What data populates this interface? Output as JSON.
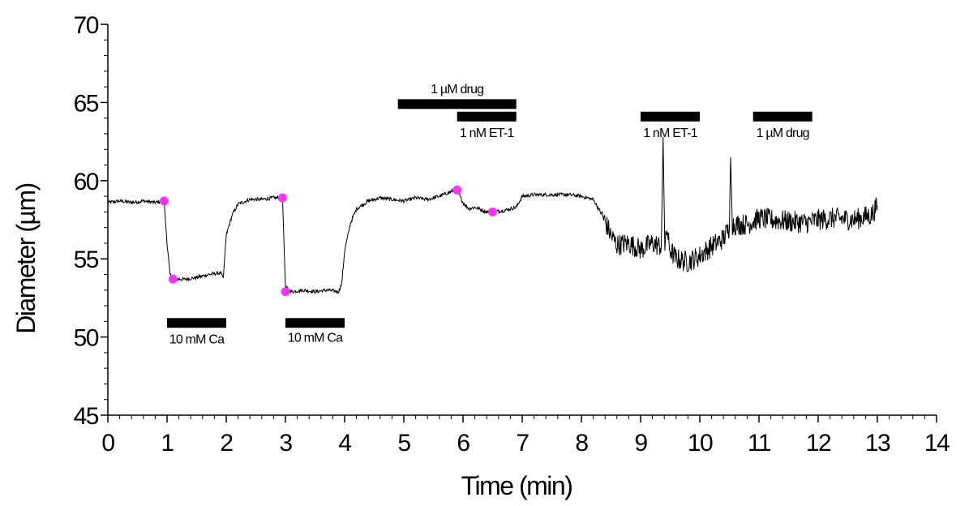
{
  "chart_data": {
    "type": "line",
    "title": "",
    "xlabel": "Time (min)",
    "ylabel": "Diameter (µm)",
    "xlim": [
      0,
      14
    ],
    "ylim": [
      45,
      70
    ],
    "x_ticks": [
      0,
      1,
      2,
      3,
      4,
      5,
      6,
      7,
      8,
      9,
      10,
      11,
      12,
      13,
      14
    ],
    "y_ticks": [
      45,
      50,
      55,
      60,
      65,
      70
    ],
    "x_tick_labels": [
      "0",
      "1",
      "2",
      "3",
      "4",
      "5",
      "6",
      "7",
      "8",
      "9",
      "10",
      "11",
      "12",
      "13",
      "14"
    ],
    "y_tick_labels": [
      "45",
      "50",
      "55",
      "60",
      "65",
      "70"
    ],
    "grid": false,
    "series": [
      {
        "name": "",
        "color": "#000000",
        "points": [
          [
            0.0,
            58.6
          ],
          [
            0.2,
            58.7
          ],
          [
            0.4,
            58.6
          ],
          [
            0.6,
            58.7
          ],
          [
            0.8,
            58.6
          ],
          [
            0.95,
            58.7
          ],
          [
            1.0,
            56.0
          ],
          [
            1.05,
            54.0
          ],
          [
            1.1,
            53.7
          ],
          [
            1.3,
            53.7
          ],
          [
            1.5,
            53.8
          ],
          [
            1.7,
            54.0
          ],
          [
            1.9,
            54.1
          ],
          [
            1.95,
            53.8
          ],
          [
            2.0,
            56.5
          ],
          [
            2.1,
            57.8
          ],
          [
            2.2,
            58.5
          ],
          [
            2.4,
            58.8
          ],
          [
            2.6,
            58.8
          ],
          [
            2.8,
            58.9
          ],
          [
            2.95,
            58.9
          ],
          [
            3.0,
            53.2
          ],
          [
            3.1,
            52.9
          ],
          [
            3.3,
            53.0
          ],
          [
            3.5,
            52.9
          ],
          [
            3.7,
            53.0
          ],
          [
            3.9,
            52.9
          ],
          [
            3.95,
            53.4
          ],
          [
            4.0,
            55.5
          ],
          [
            4.1,
            57.3
          ],
          [
            4.2,
            58.2
          ],
          [
            4.4,
            58.7
          ],
          [
            4.6,
            58.9
          ],
          [
            4.8,
            58.8
          ],
          [
            5.0,
            58.7
          ],
          [
            5.2,
            58.9
          ],
          [
            5.4,
            58.8
          ],
          [
            5.6,
            59.0
          ],
          [
            5.8,
            59.3
          ],
          [
            5.9,
            59.4
          ],
          [
            6.0,
            58.6
          ],
          [
            6.1,
            58.2
          ],
          [
            6.2,
            58.3
          ],
          [
            6.4,
            58.0
          ],
          [
            6.5,
            58.0
          ],
          [
            6.7,
            58.1
          ],
          [
            6.9,
            58.3
          ],
          [
            7.0,
            59.0
          ],
          [
            7.2,
            59.1
          ],
          [
            7.5,
            59.1
          ],
          [
            7.8,
            59.1
          ],
          [
            8.0,
            59.0
          ],
          [
            8.2,
            58.8
          ],
          [
            8.35,
            57.8
          ],
          [
            8.5,
            56.5
          ],
          [
            8.6,
            55.9
          ],
          [
            8.8,
            56.0
          ],
          [
            9.0,
            55.6
          ],
          [
            9.2,
            56.0
          ],
          [
            9.35,
            55.8
          ],
          [
            9.38,
            62.8
          ],
          [
            9.41,
            55.6
          ],
          [
            9.45,
            57.0
          ],
          [
            9.48,
            55.7
          ],
          [
            9.6,
            55.0
          ],
          [
            9.8,
            54.8
          ],
          [
            10.0,
            55.2
          ],
          [
            10.2,
            55.8
          ],
          [
            10.4,
            56.3
          ],
          [
            10.5,
            57.0
          ],
          [
            10.52,
            61.5
          ],
          [
            10.55,
            57.2
          ],
          [
            10.8,
            57.2
          ],
          [
            11.0,
            57.6
          ],
          [
            11.2,
            57.5
          ],
          [
            11.5,
            57.4
          ],
          [
            11.8,
            57.3
          ],
          [
            12.0,
            57.5
          ],
          [
            12.3,
            57.6
          ],
          [
            12.6,
            57.5
          ],
          [
            12.9,
            57.8
          ],
          [
            13.0,
            58.4
          ]
        ],
        "noise_segments": [
          {
            "start": 8.35,
            "end": 13.0,
            "amplitude": 0.7
          }
        ]
      }
    ],
    "markers": {
      "color": "#ff33ff",
      "points": [
        [
          0.95,
          58.7
        ],
        [
          1.1,
          53.7
        ],
        [
          2.95,
          58.9
        ],
        [
          3.0,
          52.9
        ],
        [
          5.9,
          59.4
        ],
        [
          6.5,
          58.0
        ]
      ]
    },
    "annotations": [
      {
        "label": "10 mM Ca",
        "x_start": 1.0,
        "x_end": 2.0,
        "y_bar": 50.9,
        "y_label": 49.9
      },
      {
        "label": "10 mM Ca",
        "x_start": 3.0,
        "x_end": 4.0,
        "y_bar": 50.9,
        "y_label": 50.0
      },
      {
        "label": "1 µM drug",
        "x_start": 4.9,
        "x_end": 6.9,
        "y_bar": 64.9,
        "y_label": 65.9
      },
      {
        "label": "1 nM ET-1",
        "x_start": 5.9,
        "x_end": 6.9,
        "y_bar": 64.1,
        "y_label": 63.1
      },
      {
        "label": "1 nM ET-1",
        "x_start": 9.0,
        "x_end": 10.0,
        "y_bar": 64.1,
        "y_label": 63.1
      },
      {
        "label": "1 µM drug",
        "x_start": 10.9,
        "x_end": 11.9,
        "y_bar": 64.1,
        "y_label": 63.1
      }
    ]
  }
}
